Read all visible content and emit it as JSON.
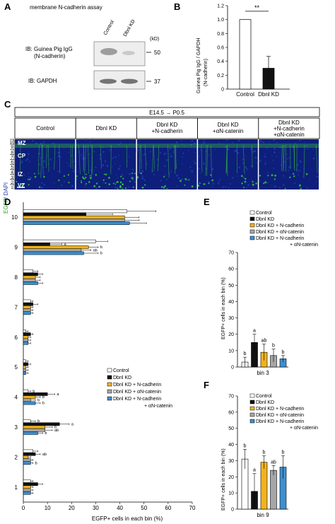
{
  "panels": {
    "A": "A",
    "B": "B",
    "C": "C",
    "D": "D",
    "E": "E",
    "F": "F"
  },
  "panelA": {
    "title": "membrane N-cadherin assay",
    "lanes": [
      "Control",
      "Dbnl KD"
    ],
    "kd_label": "(kD)",
    "blot1_label_line1": "IB: Guinea Pig IgG",
    "blot1_label_line2": "(N-cadherin)",
    "blot1_mw": "50",
    "blot2_label": "IB: GAPDH",
    "blot2_mw": "37"
  },
  "panelB": {
    "ylabel_line1": "Guinea Pig IgG / GAPDH",
    "ylabel_line2": "(N-cadherin)",
    "significance": "**",
    "yticks": [
      "0",
      "0.2",
      "0.4",
      "0.6",
      "0.8",
      "1.0",
      "1.2"
    ]
  },
  "panelC": {
    "stage": "E14.5 → P0.5",
    "columns": [
      "Control",
      "Dbnl KD",
      "Dbnl KD\n+N-cadherin",
      "Dbnl KD\n+αN-catenin",
      "Dbnl KD\n+N-cadherin\n+αN-catenin"
    ],
    "layers": [
      "MZ",
      "CP",
      "IZ",
      "VZ"
    ],
    "bins": [
      "10",
      "9",
      "8",
      "7",
      "6",
      "5",
      "4",
      "3",
      "2",
      "1"
    ],
    "side_label_egfp": "EGFP",
    "side_label_dapi": "/ DAPI"
  },
  "panelD": {
    "xlabel": "EGFP+ cells in each bin (%)",
    "xticks": [
      "0",
      "10",
      "20",
      "30",
      "40",
      "50",
      "60",
      "70"
    ]
  },
  "panelE": {
    "ylabel": "EGFP+ cells in each bin (%)",
    "xlabel": "bin 3",
    "yticks": [
      "0",
      "10",
      "20",
      "30",
      "40",
      "50",
      "60",
      "70"
    ]
  },
  "panelF": {
    "ylabel": "EGFP+ cells in each bin (%)",
    "xlabel": "bin 9",
    "yticks": [
      "0",
      "10",
      "20",
      "30",
      "40",
      "50",
      "60",
      "70"
    ]
  },
  "legend": [
    "Control",
    "Dbnl KD",
    "Dbnl KD + N-cadherin",
    "Dbnl KD + αN-catenin",
    "Dbnl KD + N-cadherin",
    "+ αN-catenin"
  ],
  "colors": {
    "control": "#ffffff",
    "dbnl": "#111111",
    "ncad": "#f2b21b",
    "acat": "#a6a6a6",
    "both": "#3c8fd0",
    "image_bg": "#0d1f7a",
    "egfp": "#3ccf3a"
  },
  "chart_data": [
    {
      "type": "bar",
      "panel": "B",
      "categories": [
        "Control",
        "Dbnl KD"
      ],
      "values": [
        1.0,
        0.3
      ],
      "errors": [
        0,
        0.17
      ],
      "ylim": [
        0,
        1.2
      ],
      "significance": "**"
    },
    {
      "type": "bar",
      "panel": "D",
      "orientation": "horizontal",
      "categories": [
        "1",
        "2",
        "3",
        "4",
        "5",
        "6",
        "7",
        "8",
        "9",
        "10"
      ],
      "series": [
        {
          "name": "Control",
          "values": [
            3,
            4,
            3,
            2,
            1,
            1,
            3,
            4,
            30,
            43
          ],
          "errors": [
            1,
            2,
            2,
            1,
            1,
            1,
            1,
            2,
            5,
            12
          ]
        },
        {
          "name": "Dbnl KD",
          "values": [
            6,
            5,
            15,
            10,
            2,
            3,
            4,
            6,
            11,
            26
          ],
          "errors": [
            2,
            2,
            4,
            3,
            1,
            1,
            2,
            2,
            5,
            11
          ]
        },
        {
          "name": "Dbnl KD + N-cadherin",
          "values": [
            3,
            2,
            9,
            5,
            1,
            2,
            3,
            5,
            27,
            42
          ],
          "errors": [
            1,
            1,
            3,
            2,
            1,
            1,
            1,
            2,
            4,
            6
          ]
        },
        {
          "name": "Dbnl KD + αN-catenin",
          "values": [
            3,
            3,
            9,
            3,
            1,
            2,
            3,
            5,
            24,
            42
          ],
          "errors": [
            1,
            1,
            3,
            2,
            1,
            1,
            1,
            2,
            4,
            6
          ]
        },
        {
          "name": "Dbnl KD + N-cadherin + αN-catenin",
          "values": [
            3,
            3,
            6,
            5,
            1,
            2,
            3,
            6,
            25,
            44
          ],
          "errors": [
            1,
            1,
            2,
            2,
            1,
            1,
            1,
            2,
            6,
            7
          ]
        }
      ],
      "annotations": {
        "9": [
          "",
          "a",
          "b",
          "ab",
          "b"
        ],
        "4": [
          "b",
          "a",
          "b",
          "b",
          "b"
        ],
        "3": [
          "b",
          "a",
          "b",
          "ab",
          "b"
        ],
        "2": [
          "",
          "ab",
          "",
          "",
          "b"
        ]
      },
      "xlim": [
        0,
        70
      ],
      "xlabel": "EGFP+ cells in each bin (%)"
    },
    {
      "type": "bar",
      "panel": "E",
      "categories": [
        "Control",
        "Dbnl KD",
        "Dbnl KD + N-cadherin",
        "Dbnl KD + αN-catenin",
        "Dbnl KD + N-cadherin + αN-catenin"
      ],
      "values": [
        3,
        15,
        9,
        7,
        5
      ],
      "errors": [
        3,
        5,
        5,
        4,
        2
      ],
      "letters": [
        "b",
        "a",
        "ab",
        "b",
        "b"
      ],
      "ylim": [
        0,
        70
      ],
      "xlabel": "bin 3",
      "ylabel": "EGFP+ cells in each bin (%)"
    },
    {
      "type": "bar",
      "panel": "F",
      "categories": [
        "Control",
        "Dbnl KD",
        "Dbnl KD + N-cadherin",
        "Dbnl KD + αN-catenin",
        "Dbnl KD + N-cadherin + αN-catenin"
      ],
      "values": [
        31,
        11,
        29,
        24,
        26
      ],
      "errors": [
        6,
        11,
        4,
        3,
        7
      ],
      "letters": [
        "b",
        "a",
        "b",
        "ab",
        "b"
      ],
      "ylim": [
        0,
        70
      ],
      "xlabel": "bin 9",
      "ylabel": "EGFP+ cells in each bin (%)"
    }
  ]
}
